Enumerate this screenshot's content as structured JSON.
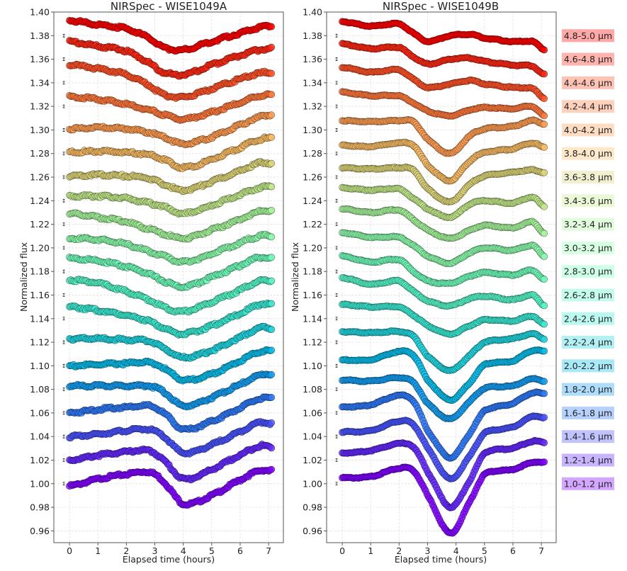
{
  "chart_data": [
    {
      "type": "scatter",
      "title": "NIRSpec - WISE1049A",
      "xlabel": "Elapsed time (hours)",
      "ylabel": "Normalized flux",
      "xlim": [
        -0.55,
        7.52
      ],
      "ylim": [
        0.95,
        1.4
      ],
      "xticks": [
        "0",
        "1",
        "2",
        "3",
        "4",
        "5",
        "6",
        "7"
      ],
      "yticks": [
        "0.96",
        "0.98",
        "1.00",
        "1.02",
        "1.04",
        "1.06",
        "1.08",
        "1.10",
        "1.12",
        "1.14",
        "1.16",
        "1.18",
        "1.20",
        "1.22",
        "1.24",
        "1.26",
        "1.28",
        "1.30",
        "1.32",
        "1.34",
        "1.36",
        "1.38",
        "1.40"
      ],
      "grid": true,
      "knot_times": [
        0,
        1,
        2,
        2.8,
        3.3,
        4,
        5,
        6,
        6.7,
        7.1
      ],
      "series": [
        {
          "name": "1.0-1.2 μm",
          "values": [
            0.998,
            1.004,
            1.008,
            1.01,
            1.002,
            0.983,
            0.99,
            1.003,
            1.011,
            1.011
          ]
        },
        {
          "name": "1.2-1.4 μm",
          "values": [
            1.02,
            1.024,
            1.027,
            1.028,
            1.02,
            1.004,
            1.012,
            1.024,
            1.032,
            1.031
          ]
        },
        {
          "name": "1.4-1.6 μm",
          "values": [
            1.04,
            1.042,
            1.045,
            1.046,
            1.04,
            1.026,
            1.033,
            1.044,
            1.052,
            1.051
          ]
        },
        {
          "name": "1.6-1.8 μm",
          "values": [
            1.06,
            1.063,
            1.065,
            1.066,
            1.06,
            1.046,
            1.053,
            1.064,
            1.072,
            1.072
          ]
        },
        {
          "name": "1.8-2.0 μm",
          "values": [
            1.083,
            1.083,
            1.083,
            1.083,
            1.078,
            1.066,
            1.073,
            1.084,
            1.092,
            1.093
          ]
        },
        {
          "name": "2.0-2.2 μm",
          "values": [
            1.1,
            1.101,
            1.102,
            1.103,
            1.098,
            1.088,
            1.093,
            1.104,
            1.112,
            1.112
          ]
        },
        {
          "name": "2.2-2.4 μm",
          "values": [
            1.123,
            1.123,
            1.122,
            1.121,
            1.115,
            1.107,
            1.113,
            1.124,
            1.132,
            1.132
          ]
        },
        {
          "name": "2.4-2.6 μm",
          "values": [
            1.15,
            1.147,
            1.143,
            1.138,
            1.132,
            1.127,
            1.134,
            1.144,
            1.152,
            1.152
          ]
        },
        {
          "name": "2.6-2.8 μm",
          "values": [
            1.173,
            1.17,
            1.163,
            1.156,
            1.15,
            1.146,
            1.154,
            1.164,
            1.172,
            1.172
          ]
        },
        {
          "name": "2.8-3.0 μm",
          "values": [
            1.191,
            1.189,
            1.184,
            1.178,
            1.172,
            1.167,
            1.175,
            1.185,
            1.192,
            1.191
          ]
        },
        {
          "name": "3.0-3.2 μm",
          "values": [
            1.208,
            1.207,
            1.203,
            1.197,
            1.193,
            1.188,
            1.195,
            1.204,
            1.21,
            1.21
          ]
        },
        {
          "name": "3.2-3.4 μm",
          "values": [
            1.229,
            1.226,
            1.222,
            1.216,
            1.212,
            1.208,
            1.215,
            1.224,
            1.231,
            1.231
          ]
        },
        {
          "name": "3.4-3.6 μm",
          "values": [
            1.244,
            1.244,
            1.242,
            1.238,
            1.235,
            1.229,
            1.236,
            1.245,
            1.251,
            1.252
          ]
        },
        {
          "name": "3.6-3.8 μm",
          "values": [
            1.261,
            1.262,
            1.261,
            1.259,
            1.254,
            1.249,
            1.256,
            1.265,
            1.272,
            1.272
          ]
        },
        {
          "name": "3.8-4.0 μm",
          "values": [
            1.281,
            1.282,
            1.281,
            1.279,
            1.275,
            1.268,
            1.275,
            1.285,
            1.292,
            1.293
          ]
        },
        {
          "name": "4.0-4.2 μm",
          "values": [
            1.301,
            1.302,
            1.301,
            1.298,
            1.294,
            1.288,
            1.294,
            1.304,
            1.311,
            1.313
          ]
        },
        {
          "name": "4.2-4.4 μm",
          "values": [
            1.328,
            1.326,
            1.322,
            1.317,
            1.313,
            1.309,
            1.315,
            1.323,
            1.329,
            1.33
          ]
        },
        {
          "name": "4.4-4.6 μm",
          "values": [
            1.355,
            1.352,
            1.347,
            1.338,
            1.33,
            1.328,
            1.335,
            1.343,
            1.348,
            1.349
          ]
        },
        {
          "name": "4.6-4.8 μm",
          "values": [
            1.375,
            1.371,
            1.367,
            1.357,
            1.349,
            1.347,
            1.355,
            1.363,
            1.368,
            1.369
          ]
        },
        {
          "name": "4.8-5.0 μm",
          "values": [
            1.393,
            1.389,
            1.386,
            1.378,
            1.37,
            1.368,
            1.375,
            1.382,
            1.387,
            1.388
          ]
        }
      ]
    },
    {
      "type": "scatter",
      "title": "NIRSpec - WISE1049B",
      "xlabel": "Elapsed time (hours)",
      "ylabel": "Normalized flux",
      "xlim": [
        -0.55,
        7.52
      ],
      "ylim": [
        0.95,
        1.4
      ],
      "xticks": [
        "0",
        "1",
        "2",
        "3",
        "4",
        "5",
        "6",
        "7"
      ],
      "yticks": [
        "0.96",
        "0.98",
        "1.00",
        "1.02",
        "1.04",
        "1.06",
        "1.08",
        "1.10",
        "1.12",
        "1.14",
        "1.16",
        "1.18",
        "1.20",
        "1.22",
        "1.24",
        "1.26",
        "1.28",
        "1.30",
        "1.32",
        "1.34",
        "1.36",
        "1.38",
        "1.40"
      ],
      "grid": true,
      "legend": "right-outside",
      "knot_times": [
        0,
        1,
        2,
        2.5,
        3,
        3.8,
        4.5,
        5,
        6,
        6.7,
        7.1
      ],
      "series": [
        {
          "name": "1.0-1.2 μm",
          "values": [
            1.005,
            1.006,
            1.013,
            1.011,
            0.99,
            0.958,
            0.985,
            1.008,
            1.012,
            1.018,
            1.018
          ]
        },
        {
          "name": "1.2-1.4 μm",
          "values": [
            1.026,
            1.028,
            1.034,
            1.031,
            1.01,
            0.98,
            1.003,
            1.026,
            1.03,
            1.036,
            1.035
          ]
        },
        {
          "name": "1.4-1.6 μm",
          "values": [
            1.044,
            1.045,
            1.053,
            1.05,
            1.03,
            1.004,
            1.024,
            1.043,
            1.048,
            1.057,
            1.056
          ]
        },
        {
          "name": "1.6-1.8 μm",
          "values": [
            1.065,
            1.067,
            1.075,
            1.07,
            1.045,
            1.022,
            1.043,
            1.062,
            1.068,
            1.077,
            1.076
          ]
        },
        {
          "name": "1.8-2.0 μm",
          "values": [
            1.088,
            1.087,
            1.09,
            1.086,
            1.068,
            1.055,
            1.07,
            1.081,
            1.083,
            1.089,
            1.087
          ]
        },
        {
          "name": "2.0-2.2 μm",
          "values": [
            1.105,
            1.105,
            1.112,
            1.109,
            1.088,
            1.071,
            1.086,
            1.101,
            1.104,
            1.113,
            1.112
          ]
        },
        {
          "name": "2.2-2.4 μm",
          "values": [
            1.129,
            1.128,
            1.129,
            1.125,
            1.108,
            1.096,
            1.109,
            1.12,
            1.123,
            1.127,
            1.123
          ]
        },
        {
          "name": "2.4-2.6 μm",
          "values": [
            1.152,
            1.15,
            1.15,
            1.143,
            1.134,
            1.127,
            1.134,
            1.139,
            1.138,
            1.142,
            1.135
          ]
        },
        {
          "name": "2.6-2.8 μm",
          "values": [
            1.175,
            1.169,
            1.172,
            1.163,
            1.155,
            1.151,
            1.157,
            1.159,
            1.156,
            1.16,
            1.151
          ]
        },
        {
          "name": "2.8-3.0 μm",
          "values": [
            1.193,
            1.188,
            1.19,
            1.18,
            1.172,
            1.17,
            1.176,
            1.179,
            1.177,
            1.181,
            1.173
          ]
        },
        {
          "name": "3.0-3.2 μm",
          "values": [
            1.213,
            1.209,
            1.209,
            1.202,
            1.193,
            1.187,
            1.196,
            1.2,
            1.198,
            1.202,
            1.193
          ]
        },
        {
          "name": "3.2-3.4 μm",
          "values": [
            1.233,
            1.23,
            1.232,
            1.224,
            1.215,
            1.208,
            1.215,
            1.219,
            1.217,
            1.222,
            1.212
          ]
        },
        {
          "name": "3.4-3.6 μm",
          "values": [
            1.251,
            1.249,
            1.25,
            1.242,
            1.233,
            1.226,
            1.237,
            1.24,
            1.238,
            1.243,
            1.235
          ]
        },
        {
          "name": "3.6-3.8 μm",
          "values": [
            1.268,
            1.267,
            1.268,
            1.266,
            1.25,
            1.239,
            1.254,
            1.261,
            1.264,
            1.266,
            1.264
          ]
        },
        {
          "name": "3.8-4.0 μm",
          "values": [
            1.287,
            1.286,
            1.289,
            1.287,
            1.27,
            1.257,
            1.274,
            1.281,
            1.284,
            1.289,
            1.285
          ]
        },
        {
          "name": "4.0-4.2 μm",
          "values": [
            1.308,
            1.307,
            1.308,
            1.307,
            1.292,
            1.28,
            1.295,
            1.301,
            1.303,
            1.308,
            1.305
          ]
        },
        {
          "name": "4.2-4.4 μm",
          "values": [
            1.332,
            1.329,
            1.329,
            1.323,
            1.316,
            1.312,
            1.317,
            1.319,
            1.318,
            1.32,
            1.312
          ]
        },
        {
          "name": "4.4-4.6 μm",
          "values": [
            1.353,
            1.349,
            1.351,
            1.343,
            1.336,
            1.339,
            1.342,
            1.339,
            1.336,
            1.335,
            1.327
          ]
        },
        {
          "name": "4.6-4.8 μm",
          "values": [
            1.373,
            1.369,
            1.37,
            1.362,
            1.356,
            1.36,
            1.361,
            1.358,
            1.355,
            1.354,
            1.347
          ]
        },
        {
          "name": "4.8-5.0 μm",
          "values": [
            1.392,
            1.388,
            1.39,
            1.382,
            1.375,
            1.38,
            1.381,
            1.378,
            1.375,
            1.375,
            1.368
          ]
        }
      ]
    }
  ],
  "series_colors": [
    "#8000ff",
    "#6529fe",
    "#4a53fc",
    "#2f7af7",
    "#149df1",
    "#07bce9",
    "#22d5df",
    "#3cead3",
    "#57f7c9",
    "#72febb",
    "#8dfead",
    "#a8f79d",
    "#c3ea8b",
    "#ddd579",
    "#f8bc66",
    "#ff9d53",
    "#ff7a3e",
    "#ff532a",
    "#ff2915",
    "#ff0000"
  ]
}
